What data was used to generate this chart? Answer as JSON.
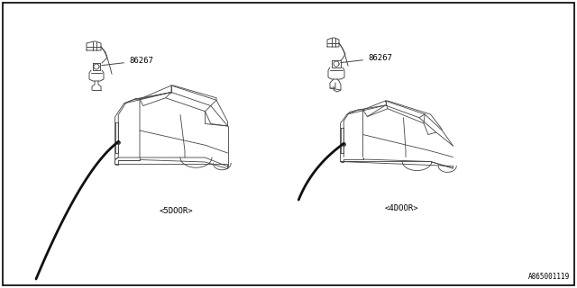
{
  "bg_color": "#ffffff",
  "border_color": "#000000",
  "line_color": "#444444",
  "cable_color": "#111111",
  "text_color": "#000000",
  "fig_width": 6.4,
  "fig_height": 3.2,
  "dpi": 100,
  "label_5door": "<5DOOR>",
  "label_4door": "<4DOOR>",
  "part_number": "86267",
  "diagram_code": "A865001119",
  "border_lw": 1.2,
  "car_lw": 0.6,
  "cable_lw": 2.0,
  "label_fontsize": 6.5,
  "code_fontsize": 5.5
}
